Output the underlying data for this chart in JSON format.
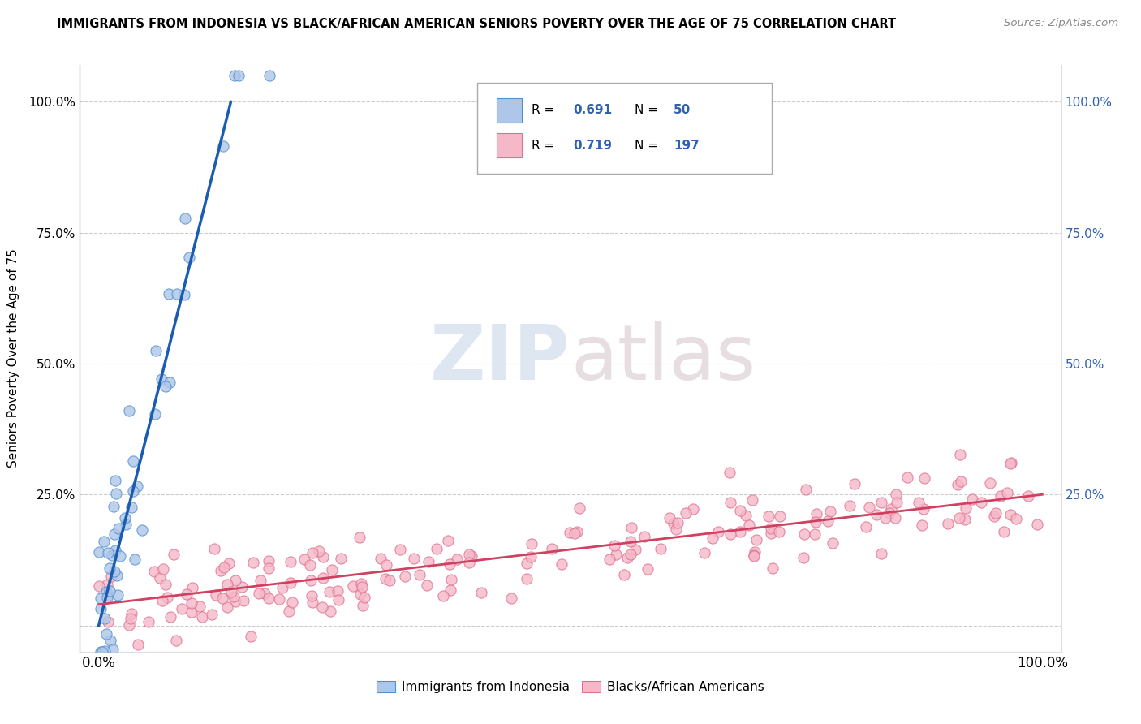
{
  "title": "IMMIGRANTS FROM INDONESIA VS BLACK/AFRICAN AMERICAN SENIORS POVERTY OVER THE AGE OF 75 CORRELATION CHART",
  "source": "Source: ZipAtlas.com",
  "ylabel": "Seniors Poverty Over the Age of 75",
  "blue_R": 0.691,
  "blue_N": 50,
  "pink_R": 0.719,
  "pink_N": 197,
  "blue_color": "#aec6e8",
  "blue_line_color": "#1a5cb0",
  "blue_edge_color": "#5090d0",
  "pink_color": "#f5b8c8",
  "pink_line_color": "#d04060",
  "pink_edge_color": "#e07090",
  "legend_blue_label": "Immigrants from Indonesia",
  "legend_pink_label": "Blacks/African Americans",
  "watermark_zip": "ZIP",
  "watermark_atlas": "atlas",
  "xlim_min": -2.0,
  "xlim_max": 102.0,
  "ylim_min": -5.0,
  "ylim_max": 107.0,
  "yticks": [
    0,
    25,
    50,
    75,
    100
  ],
  "ytick_labels_left": [
    "",
    "25.0%",
    "50.0%",
    "75.0%",
    "100.0%"
  ],
  "ytick_labels_right": [
    "",
    "25.0%",
    "50.0%",
    "75.0%",
    "100.0%"
  ],
  "xticks": [
    0,
    100
  ],
  "xtick_labels": [
    "0.0%",
    "100.0%"
  ],
  "blue_line_x": [
    0.0,
    14.0
  ],
  "blue_line_y": [
    0.0,
    100.0
  ],
  "pink_line_x": [
    0.0,
    100.0
  ],
  "pink_line_y": [
    4.0,
    25.0
  ]
}
